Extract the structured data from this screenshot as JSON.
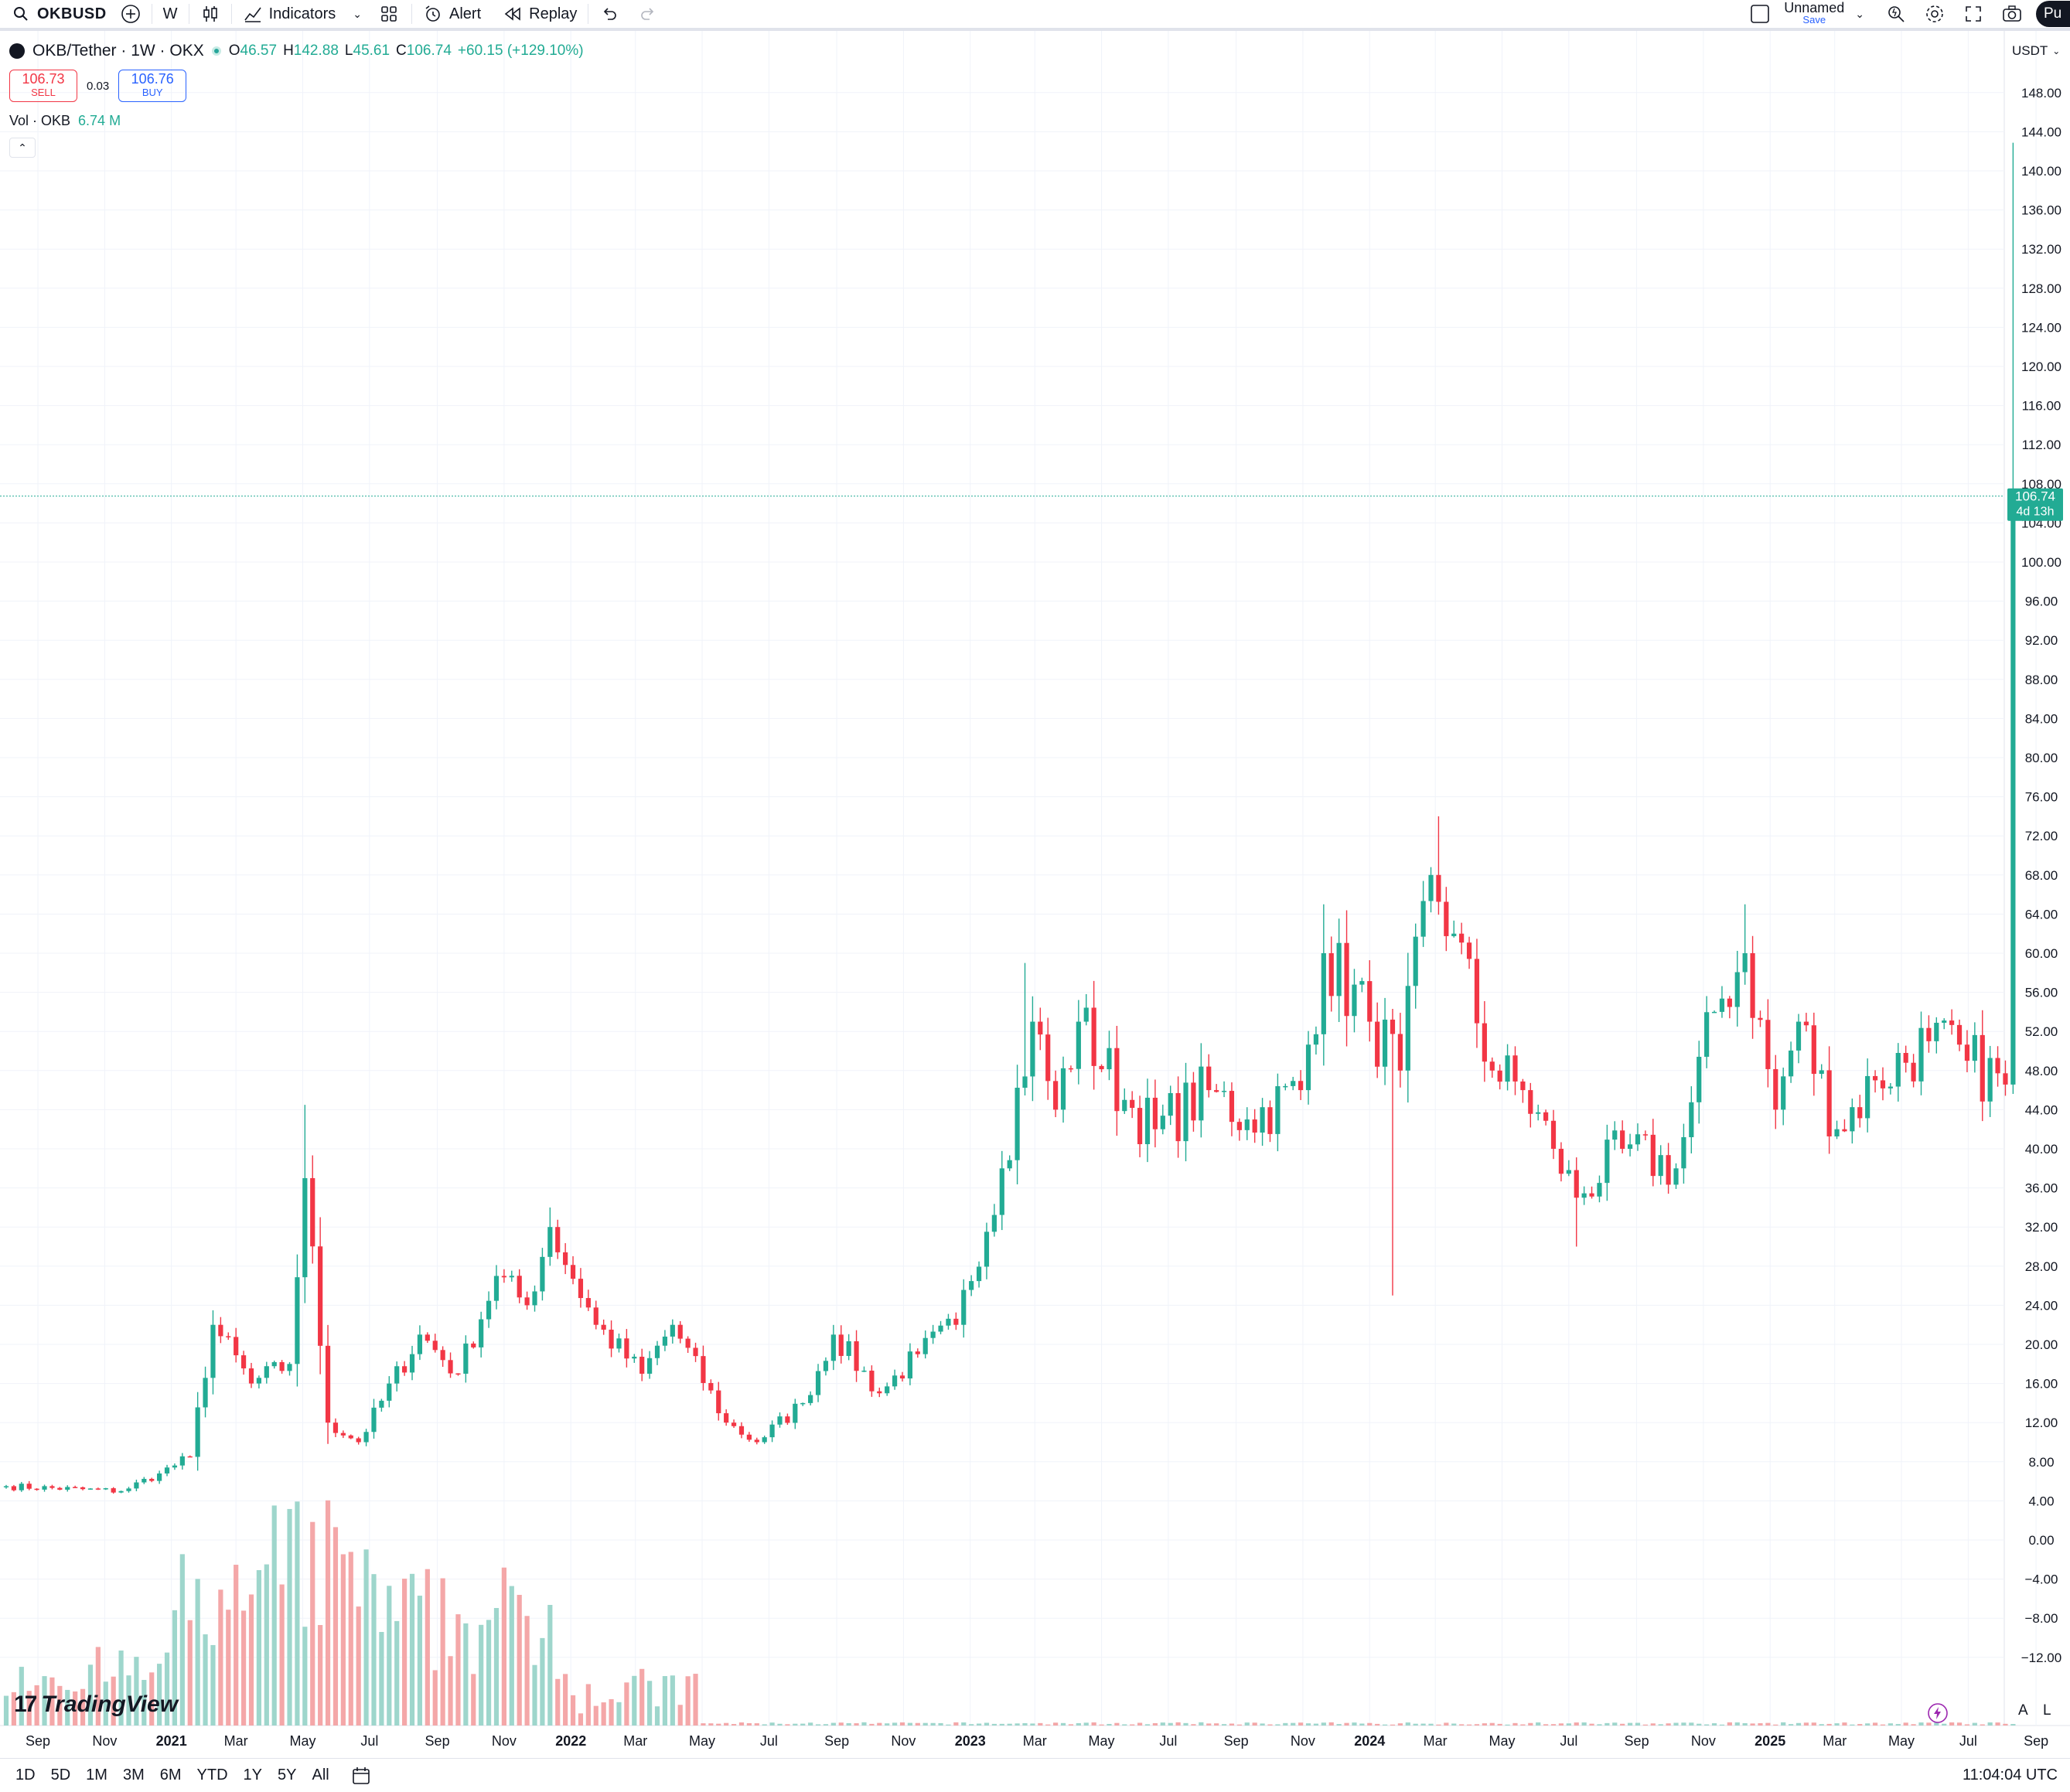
{
  "toolbar": {
    "symbol": "OKBUSD",
    "interval": "W",
    "indicators_label": "Indicators",
    "alert_label": "Alert",
    "replay_label": "Replay",
    "layout_name": "Unnamed",
    "save_label": "Save",
    "publish_label": "Pu"
  },
  "legend": {
    "title": "OKB/Tether · 1W · OKX",
    "open_label": "O",
    "open": "46.57",
    "high_label": "H",
    "high": "142.88",
    "low_label": "L",
    "low": "45.61",
    "close_label": "C",
    "close": "106.74",
    "change": "+60.15 (+129.10%)"
  },
  "trade": {
    "sell_price": "106.73",
    "sell_label": "SELL",
    "spread": "0.03",
    "buy_price": "106.76",
    "buy_label": "BUY"
  },
  "volume_legend": {
    "label": "Vol · OKB",
    "value": "6.74 M"
  },
  "price_scale": {
    "currency": "USDT",
    "last_price": "106.74",
    "countdown": "4d 13h"
  },
  "bottom": {
    "ranges": [
      "1D",
      "5D",
      "1M",
      "3M",
      "6M",
      "YTD",
      "1Y",
      "5Y",
      "All"
    ],
    "time": "11:04:04 UTC",
    "auto_label": "A",
    "log_label": "L"
  },
  "brand": {
    "name": "TradingView"
  },
  "colors": {
    "up": "#22ab94",
    "down": "#f23645",
    "up_volume": "#9ed6cc",
    "down_volume": "#f4a7a8",
    "grid": "#f0f3fa"
  },
  "chart_data": {
    "type": "candlestick",
    "interval": "1W",
    "y_ticks": [
      "148.00",
      "144.00",
      "140.00",
      "136.00",
      "132.00",
      "128.00",
      "124.00",
      "120.00",
      "116.00",
      "112.00",
      "108.00",
      "104.00",
      "100.00",
      "96.00",
      "92.00",
      "88.00",
      "84.00",
      "80.00",
      "76.00",
      "72.00",
      "68.00",
      "64.00",
      "60.00",
      "56.00",
      "52.00",
      "48.00",
      "44.00",
      "40.00",
      "36.00",
      "32.00",
      "28.00",
      "24.00",
      "20.00",
      "16.00",
      "12.00",
      "8.00",
      "4.00",
      "0.00",
      "−4.00",
      "−8.00",
      "−12.00"
    ],
    "x_ticks": [
      "Sep",
      "Nov",
      "2021",
      "Mar",
      "May",
      "Jul",
      "Sep",
      "Nov",
      "2022",
      "Mar",
      "May",
      "Jul",
      "Sep",
      "Nov",
      "2023",
      "Mar",
      "May",
      "Jul",
      "Sep",
      "Nov",
      "2024",
      "Mar",
      "May",
      "Jul",
      "Sep",
      "Nov",
      "2025",
      "Mar",
      "May",
      "Jul",
      "Sep"
    ],
    "y_range": [
      -16,
      152
    ],
    "period_start": "2020-08-03",
    "anchors": [
      {
        "date": "2020-08-03",
        "close": 5.5
      },
      {
        "date": "2020-11-16",
        "close": 5.0
      },
      {
        "date": "2020-12-21",
        "close": 6.8
      },
      {
        "date": "2021-01-18",
        "close": 8.5
      },
      {
        "date": "2021-02-08",
        "close": 22.0
      },
      {
        "date": "2021-03-15",
        "close": 16.0
      },
      {
        "date": "2021-04-19",
        "close": 18.0
      },
      {
        "date": "2021-05-03",
        "close": 37.0
      },
      {
        "date": "2021-05-24",
        "close": 12.0
      },
      {
        "date": "2021-06-21",
        "close": 10.0
      },
      {
        "date": "2021-08-16",
        "close": 21.0
      },
      {
        "date": "2021-09-20",
        "close": 17.0
      },
      {
        "date": "2021-10-25",
        "close": 27.0
      },
      {
        "date": "2021-11-22",
        "close": 24.0
      },
      {
        "date": "2021-12-13",
        "close": 32.0
      },
      {
        "date": "2022-01-24",
        "close": 22.0
      },
      {
        "date": "2022-03-07",
        "close": 17.0
      },
      {
        "date": "2022-04-04",
        "close": 22.0
      },
      {
        "date": "2022-05-23",
        "close": 12.0
      },
      {
        "date": "2022-06-20",
        "close": 10.0
      },
      {
        "date": "2022-08-01",
        "close": 14.0
      },
      {
        "date": "2022-08-29",
        "close": 21.0
      },
      {
        "date": "2022-10-10",
        "close": 15.0
      },
      {
        "date": "2022-11-14",
        "close": 19.0
      },
      {
        "date": "2022-12-19",
        "close": 22.0
      },
      {
        "date": "2023-01-30",
        "close": 38.0
      },
      {
        "date": "2023-02-27",
        "close": 53.0
      },
      {
        "date": "2023-03-20",
        "close": 44.0
      },
      {
        "date": "2023-04-10",
        "close": 53.0
      },
      {
        "date": "2023-05-22",
        "close": 45.0
      },
      {
        "date": "2023-06-19",
        "close": 42.0
      },
      {
        "date": "2023-08-07",
        "close": 46.0
      },
      {
        "date": "2023-09-11",
        "close": 43.0
      },
      {
        "date": "2023-10-30",
        "close": 46.0
      },
      {
        "date": "2023-11-20",
        "close": 60.0
      },
      {
        "date": "2024-01-01",
        "close": 53.0
      },
      {
        "date": "2024-01-29",
        "close": 48.0
      },
      {
        "date": "2024-02-26",
        "close": 68.0
      },
      {
        "date": "2024-03-18",
        "close": 62.0
      },
      {
        "date": "2024-04-22",
        "close": 48.0
      },
      {
        "date": "2024-05-20",
        "close": 46.0
      },
      {
        "date": "2024-06-17",
        "close": 40.0
      },
      {
        "date": "2024-07-08",
        "close": 35.0
      },
      {
        "date": "2024-08-19",
        "close": 40.0
      },
      {
        "date": "2024-10-07",
        "close": 38.0
      },
      {
        "date": "2024-11-11",
        "close": 54.0
      },
      {
        "date": "2024-12-09",
        "close": 60.0
      },
      {
        "date": "2025-01-06",
        "close": 44.0
      },
      {
        "date": "2025-01-27",
        "close": 53.0
      },
      {
        "date": "2025-03-03",
        "close": 42.0
      },
      {
        "date": "2025-04-07",
        "close": 47.0
      },
      {
        "date": "2025-05-26",
        "close": 51.0
      },
      {
        "date": "2025-06-30",
        "close": 49.0
      },
      {
        "date": "2025-08-04",
        "close": 46.57
      }
    ],
    "last_candle": {
      "date": "2025-08-11",
      "open": 46.57,
      "high": 142.88,
      "low": 45.61,
      "close": 106.74
    },
    "notable_wicks": [
      {
        "date": "2021-05-03",
        "high": 44.5
      },
      {
        "date": "2021-12-13",
        "high": 34.0
      },
      {
        "date": "2023-02-20",
        "high": 59.0
      },
      {
        "date": "2023-11-20",
        "high": 65.0
      },
      {
        "date": "2024-01-22",
        "low": 25.0
      },
      {
        "date": "2024-03-04",
        "high": 74.0
      },
      {
        "date": "2024-07-08",
        "low": 30.0
      },
      {
        "date": "2024-12-09",
        "high": 65.0
      }
    ],
    "volume_note": "volume histogram at bottom of pane; heavy volume 2020–early 2022, near-zero afterwards"
  }
}
